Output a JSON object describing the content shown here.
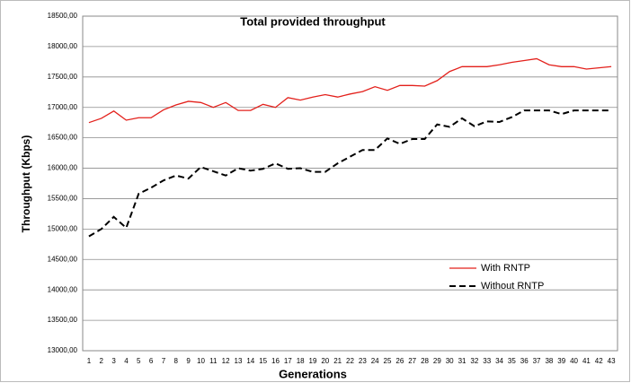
{
  "chart_data": {
    "type": "line",
    "title": "Total provided throughput",
    "x_label": "Generations",
    "y_label": "Throughput (Kbps)",
    "categories": [
      "1",
      "2",
      "3",
      "4",
      "5",
      "6",
      "7",
      "8",
      "9",
      "10",
      "11",
      "12",
      "13",
      "14",
      "15",
      "16",
      "17",
      "18",
      "19",
      "20",
      "21",
      "22",
      "23",
      "24",
      "25",
      "26",
      "27",
      "28",
      "29",
      "30",
      "31",
      "32",
      "33",
      "34",
      "35",
      "36",
      "37",
      "38",
      "39",
      "40",
      "41",
      "42",
      "43"
    ],
    "series": [
      {
        "name": "With RNTP",
        "color": "#e3201b",
        "line_style": "solid",
        "values": [
          16750,
          16820,
          16940,
          16790,
          16830,
          16830,
          16960,
          17040,
          17100,
          17080,
          17000,
          17080,
          16950,
          16950,
          17050,
          17000,
          17160,
          17120,
          17170,
          17210,
          17170,
          17220,
          17260,
          17340,
          17280,
          17360,
          17360,
          17350,
          17440,
          17590,
          17670,
          17670,
          17670,
          17700,
          17740,
          17770,
          17800,
          17700,
          17670,
          17670,
          17630,
          17650,
          17670
        ]
      },
      {
        "name": "Without RNTP",
        "color": "#000000",
        "line_style": "dashed",
        "values": [
          14880,
          15000,
          15200,
          15020,
          15580,
          15680,
          15800,
          15880,
          15830,
          16020,
          15950,
          15880,
          16000,
          15960,
          15990,
          16080,
          15990,
          16000,
          15940,
          15940,
          16080,
          16190,
          16300,
          16300,
          16490,
          16400,
          16480,
          16480,
          16720,
          16680,
          16820,
          16690,
          16770,
          16760,
          16840,
          16950,
          16950,
          16950,
          16890,
          16950,
          16950,
          16950,
          16950
        ]
      }
    ],
    "ylim": [
      13000,
      18500
    ],
    "yticks": [
      {
        "value": 13000,
        "label": "13000,00"
      },
      {
        "value": 13500,
        "label": "13500,00"
      },
      {
        "value": 14000,
        "label": "14000,00"
      },
      {
        "value": 14500,
        "label": "14500,00"
      },
      {
        "value": 15000,
        "label": "15000,00"
      },
      {
        "value": 15500,
        "label": "15500,00"
      },
      {
        "value": 16000,
        "label": "16000,00"
      },
      {
        "value": 16500,
        "label": "16500,00"
      },
      {
        "value": 17000,
        "label": "17000,00"
      },
      {
        "value": 17500,
        "label": "17500,00"
      },
      {
        "value": 18000,
        "label": "18000,00"
      },
      {
        "value": 18500,
        "label": "18500,00"
      }
    ],
    "grid": true,
    "legend_position": "lower-right"
  }
}
